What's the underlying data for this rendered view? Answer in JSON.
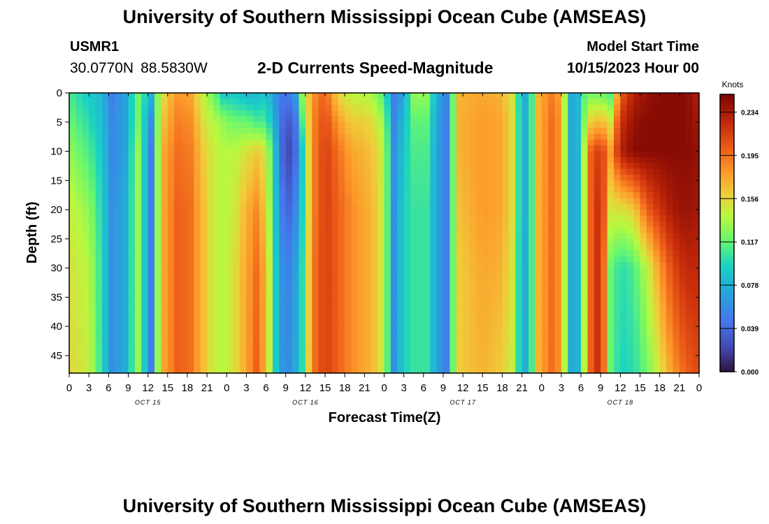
{
  "header": {
    "title": "University of Southern Mississippi Ocean Cube (AMSEAS)",
    "station": "USMR1",
    "lat": "30.0770N",
    "lon": "88.5830W",
    "subtitle": "2-D Currents Speed-Magnitude",
    "start_label": "Model Start Time",
    "start_value": "10/15/2023 Hour 00"
  },
  "footer": {
    "title": "University of Southern Mississippi Ocean Cube (AMSEAS)"
  },
  "chart_data": {
    "type": "heatmap",
    "title": "2-D Currents Speed-Magnitude",
    "xlabel": "Forecast Time(Z)",
    "ylabel": "Depth (ft)",
    "x_hours_range": [
      0,
      96
    ],
    "y_depth_range_ft": [
      0,
      48
    ],
    "x_tick_hours": [
      0,
      3,
      6,
      9,
      12,
      15,
      18,
      21,
      24,
      27,
      30,
      33,
      36,
      39,
      42,
      45,
      48,
      51,
      54,
      57,
      60,
      63,
      66,
      69,
      72,
      75,
      78,
      81,
      84,
      87,
      90,
      93,
      96
    ],
    "x_tick_labels": [
      "0",
      "3",
      "6",
      "9",
      "12",
      "15",
      "18",
      "21",
      "0",
      "3",
      "6",
      "9",
      "12",
      "15",
      "18",
      "21",
      "0",
      "3",
      "6",
      "9",
      "12",
      "15",
      "18",
      "21",
      "0",
      "3",
      "6",
      "9",
      "12",
      "15",
      "18",
      "21",
      "0"
    ],
    "y_ticks": [
      0,
      5,
      10,
      15,
      20,
      25,
      30,
      35,
      40,
      45
    ],
    "y_tick_labels": [
      "0",
      "5",
      "10",
      "15",
      "20",
      "25",
      "30",
      "35",
      "40",
      "45"
    ],
    "day_labels": [
      {
        "label": "OCT 15",
        "hour": 12
      },
      {
        "label": "OCT 16",
        "hour": 36
      },
      {
        "label": "OCT 17",
        "hour": 60
      },
      {
        "label": "OCT 18",
        "hour": 84
      }
    ],
    "colorbar": {
      "unit": "Knots",
      "min": 0.0,
      "max": 0.25,
      "ticks": [
        0.0,
        0.039,
        0.078,
        0.117,
        0.156,
        0.195,
        0.234
      ],
      "tick_labels": [
        "0.000",
        "0.039",
        "0.078",
        "0.117",
        "0.156",
        "0.195",
        "0.234"
      ]
    },
    "column_profiles": {
      "depth_ft": [
        0,
        5,
        10,
        20,
        30,
        48
      ],
      "columns": [
        {
          "hour": 0,
          "speed": [
            0.11,
            0.12,
            0.13,
            0.145,
            0.15,
            0.155
          ]
        },
        {
          "hour": 3,
          "speed": [
            0.09,
            0.1,
            0.11,
            0.13,
            0.14,
            0.145
          ]
        },
        {
          "hour": 5,
          "speed": [
            0.08,
            0.085,
            0.09,
            0.095,
            0.1,
            0.1
          ]
        },
        {
          "hour": 6.5,
          "speed": [
            0.05,
            0.055,
            0.055,
            0.06,
            0.06,
            0.06
          ]
        },
        {
          "hour": 8.5,
          "speed": [
            0.07,
            0.07,
            0.07,
            0.075,
            0.075,
            0.075
          ]
        },
        {
          "hour": 10.5,
          "speed": [
            0.12,
            0.12,
            0.13,
            0.13,
            0.13,
            0.13
          ]
        },
        {
          "hour": 12.5,
          "speed": [
            0.08,
            0.06,
            0.05,
            0.05,
            0.05,
            0.05
          ]
        },
        {
          "hour": 14,
          "speed": [
            0.15,
            0.16,
            0.17,
            0.17,
            0.17,
            0.17
          ]
        },
        {
          "hour": 16.5,
          "speed": [
            0.18,
            0.19,
            0.195,
            0.2,
            0.2,
            0.2
          ]
        },
        {
          "hour": 18.5,
          "speed": [
            0.175,
            0.185,
            0.19,
            0.195,
            0.195,
            0.195
          ]
        },
        {
          "hour": 20.5,
          "speed": [
            0.14,
            0.15,
            0.16,
            0.165,
            0.165,
            0.165
          ]
        },
        {
          "hour": 22,
          "speed": [
            0.12,
            0.14,
            0.145,
            0.145,
            0.145,
            0.145
          ]
        },
        {
          "hour": 23.5,
          "speed": [
            0.09,
            0.13,
            0.14,
            0.14,
            0.14,
            0.14
          ]
        },
        {
          "hour": 25,
          "speed": [
            0.09,
            0.12,
            0.14,
            0.145,
            0.15,
            0.15
          ]
        },
        {
          "hour": 27,
          "speed": [
            0.08,
            0.12,
            0.15,
            0.17,
            0.175,
            0.175
          ]
        },
        {
          "hour": 28.5,
          "speed": [
            0.08,
            0.11,
            0.16,
            0.185,
            0.195,
            0.2
          ]
        },
        {
          "hour": 30,
          "speed": [
            0.09,
            0.11,
            0.15,
            0.16,
            0.17,
            0.17
          ]
        },
        {
          "hour": 31.5,
          "speed": [
            0.06,
            0.07,
            0.08,
            0.085,
            0.09,
            0.09
          ]
        },
        {
          "hour": 33,
          "speed": [
            0.04,
            0.025,
            0.015,
            0.03,
            0.045,
            0.05
          ]
        },
        {
          "hour": 34.5,
          "speed": [
            0.07,
            0.045,
            0.04,
            0.055,
            0.07,
            0.075
          ]
        },
        {
          "hour": 35.5,
          "speed": [
            0.13,
            0.11,
            0.09,
            0.095,
            0.1,
            0.1
          ]
        },
        {
          "hour": 37,
          "speed": [
            0.18,
            0.185,
            0.185,
            0.185,
            0.19,
            0.19
          ]
        },
        {
          "hour": 39,
          "speed": [
            0.2,
            0.21,
            0.215,
            0.215,
            0.215,
            0.215
          ]
        },
        {
          "hour": 41,
          "speed": [
            0.155,
            0.18,
            0.195,
            0.2,
            0.2,
            0.2
          ]
        },
        {
          "hour": 43,
          "speed": [
            0.14,
            0.16,
            0.175,
            0.185,
            0.185,
            0.185
          ]
        },
        {
          "hour": 45,
          "speed": [
            0.14,
            0.16,
            0.17,
            0.175,
            0.175,
            0.175
          ]
        },
        {
          "hour": 46.5,
          "speed": [
            0.13,
            0.15,
            0.16,
            0.165,
            0.165,
            0.165
          ]
        },
        {
          "hour": 48,
          "speed": [
            0.11,
            0.13,
            0.14,
            0.14,
            0.14,
            0.14
          ]
        },
        {
          "hour": 49.5,
          "speed": [
            0.05,
            0.055,
            0.06,
            0.06,
            0.06,
            0.06
          ]
        },
        {
          "hour": 51,
          "speed": [
            0.07,
            0.085,
            0.09,
            0.095,
            0.095,
            0.095
          ]
        },
        {
          "hour": 52.5,
          "speed": [
            0.13,
            0.115,
            0.11,
            0.105,
            0.105,
            0.105
          ]
        },
        {
          "hour": 54.5,
          "speed": [
            0.13,
            0.115,
            0.11,
            0.105,
            0.105,
            0.105
          ]
        },
        {
          "hour": 56,
          "speed": [
            0.075,
            0.07,
            0.07,
            0.07,
            0.07,
            0.07
          ]
        },
        {
          "hour": 57.5,
          "speed": [
            0.055,
            0.05,
            0.05,
            0.05,
            0.05,
            0.05
          ]
        },
        {
          "hour": 58.5,
          "speed": [
            0.12,
            0.12,
            0.12,
            0.12,
            0.12,
            0.12
          ]
        },
        {
          "hour": 59.5,
          "speed": [
            0.17,
            0.17,
            0.17,
            0.165,
            0.16,
            0.16
          ]
        },
        {
          "hour": 63,
          "speed": [
            0.175,
            0.18,
            0.18,
            0.18,
            0.175,
            0.17
          ]
        },
        {
          "hour": 66,
          "speed": [
            0.17,
            0.175,
            0.175,
            0.175,
            0.17,
            0.16
          ]
        },
        {
          "hour": 68,
          "speed": [
            0.14,
            0.145,
            0.145,
            0.145,
            0.14,
            0.14
          ]
        },
        {
          "hour": 69,
          "speed": [
            0.06,
            0.06,
            0.06,
            0.06,
            0.06,
            0.06
          ]
        },
        {
          "hour": 70.5,
          "speed": [
            0.11,
            0.11,
            0.11,
            0.11,
            0.11,
            0.11
          ]
        },
        {
          "hour": 71.5,
          "speed": [
            0.17,
            0.17,
            0.17,
            0.17,
            0.17,
            0.17
          ]
        },
        {
          "hour": 73.5,
          "speed": [
            0.19,
            0.195,
            0.195,
            0.195,
            0.195,
            0.195
          ]
        },
        {
          "hour": 75,
          "speed": [
            0.175,
            0.18,
            0.18,
            0.18,
            0.18,
            0.18
          ]
        },
        {
          "hour": 76,
          "speed": [
            0.1,
            0.1,
            0.1,
            0.1,
            0.1,
            0.1
          ]
        },
        {
          "hour": 77,
          "speed": [
            0.05,
            0.05,
            0.05,
            0.05,
            0.05,
            0.05
          ]
        },
        {
          "hour": 78,
          "speed": [
            0.11,
            0.11,
            0.11,
            0.11,
            0.11,
            0.11
          ]
        },
        {
          "hour": 79.5,
          "speed": [
            0.12,
            0.16,
            0.2,
            0.2,
            0.2,
            0.2
          ]
        },
        {
          "hour": 81,
          "speed": [
            0.12,
            0.17,
            0.22,
            0.23,
            0.23,
            0.23
          ]
        },
        {
          "hour": 82.5,
          "speed": [
            0.11,
            0.15,
            0.18,
            0.15,
            0.12,
            0.12
          ]
        },
        {
          "hour": 84,
          "speed": [
            0.2,
            0.22,
            0.23,
            0.15,
            0.1,
            0.095
          ]
        },
        {
          "hour": 86,
          "speed": [
            0.23,
            0.24,
            0.245,
            0.16,
            0.11,
            0.1
          ]
        },
        {
          "hour": 88,
          "speed": [
            0.24,
            0.245,
            0.245,
            0.2,
            0.14,
            0.12
          ]
        },
        {
          "hour": 90,
          "speed": [
            0.245,
            0.245,
            0.245,
            0.22,
            0.18,
            0.15
          ]
        },
        {
          "hour": 92,
          "speed": [
            0.245,
            0.245,
            0.245,
            0.235,
            0.21,
            0.18
          ]
        },
        {
          "hour": 94,
          "speed": [
            0.245,
            0.245,
            0.245,
            0.24,
            0.225,
            0.2
          ]
        },
        {
          "hour": 96,
          "speed": [
            0.23,
            0.235,
            0.24,
            0.235,
            0.225,
            0.21
          ]
        }
      ]
    }
  }
}
